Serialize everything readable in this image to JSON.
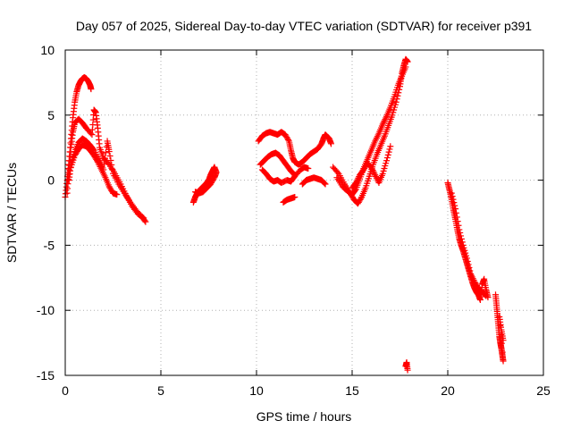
{
  "chart_data": {
    "type": "scatter",
    "title": "Day 057 of 2025, Sidereal Day-to-day VTEC variation (SDTVAR) for receiver p391",
    "xlabel": "GPS time / hours",
    "ylabel": "SDTVAR / TECUs",
    "xlim": [
      0,
      25
    ],
    "ylim": [
      -15,
      10
    ],
    "xticks": [
      0,
      5,
      10,
      15,
      20,
      25
    ],
    "yticks": [
      -15,
      -10,
      -5,
      0,
      5,
      10
    ],
    "grid": true,
    "marker": "+",
    "color": "#ff0000",
    "series": [
      {
        "name": "arc-1",
        "points": [
          [
            0.0,
            -1.3
          ],
          [
            0.1,
            0.0
          ],
          [
            0.2,
            1.5
          ],
          [
            0.3,
            3.2
          ],
          [
            0.4,
            4.8
          ],
          [
            0.5,
            6.0
          ],
          [
            0.6,
            6.8
          ],
          [
            0.7,
            7.3
          ],
          [
            0.8,
            7.6
          ],
          [
            0.9,
            7.8
          ],
          [
            1.0,
            7.9
          ],
          [
            1.1,
            7.8
          ],
          [
            1.2,
            7.6
          ],
          [
            1.3,
            7.3
          ],
          [
            1.35,
            7.0
          ]
        ]
      },
      {
        "name": "arc-2",
        "points": [
          [
            0.1,
            -1.0
          ],
          [
            0.2,
            0.8
          ],
          [
            0.3,
            2.5
          ],
          [
            0.4,
            3.7
          ],
          [
            0.5,
            4.4
          ],
          [
            0.7,
            4.7
          ],
          [
            0.9,
            4.4
          ],
          [
            1.1,
            4.0
          ],
          [
            1.4,
            3.5
          ],
          [
            1.5,
            5.4
          ],
          [
            1.6,
            5.2
          ],
          [
            1.7,
            4.0
          ],
          [
            1.8,
            2.5
          ],
          [
            2.0,
            1.7
          ],
          [
            2.3,
            1.2
          ],
          [
            2.6,
            0.5
          ],
          [
            2.9,
            -0.3
          ],
          [
            3.2,
            -1.2
          ],
          [
            3.5,
            -2.0
          ],
          [
            3.8,
            -2.6
          ],
          [
            4.1,
            -2.9
          ]
        ]
      },
      {
        "name": "arc-3",
        "points": [
          [
            0.2,
            0.0
          ],
          [
            0.3,
            1.2
          ],
          [
            0.5,
            2.2
          ],
          [
            0.7,
            2.9
          ],
          [
            0.9,
            3.2
          ],
          [
            1.1,
            3.0
          ],
          [
            1.3,
            2.7
          ],
          [
            1.5,
            2.3
          ],
          [
            1.8,
            1.5
          ],
          [
            2.0,
            0.8
          ],
          [
            2.2,
            3.0
          ],
          [
            2.3,
            2.2
          ],
          [
            2.5,
            0.5
          ],
          [
            2.8,
            -0.3
          ],
          [
            3.1,
            -1.0
          ],
          [
            3.4,
            -1.7
          ],
          [
            3.7,
            -2.3
          ],
          [
            4.0,
            -2.8
          ],
          [
            4.2,
            -3.2
          ]
        ]
      },
      {
        "name": "arc-4",
        "points": [
          [
            0.3,
            1.0
          ],
          [
            0.5,
            1.9
          ],
          [
            0.7,
            2.4
          ],
          [
            0.9,
            2.7
          ],
          [
            1.1,
            2.6
          ],
          [
            1.3,
            2.3
          ],
          [
            1.5,
            1.9
          ],
          [
            1.7,
            1.4
          ],
          [
            1.9,
            0.8
          ],
          [
            2.1,
            0.2
          ],
          [
            2.3,
            -0.5
          ],
          [
            2.5,
            -1.0
          ],
          [
            2.7,
            -1.1
          ]
        ]
      },
      {
        "name": "arc-5",
        "points": [
          [
            6.7,
            -1.7
          ],
          [
            6.8,
            -1.3
          ],
          [
            6.9,
            -1.0
          ],
          [
            7.0,
            -0.8
          ],
          [
            7.2,
            -0.5
          ],
          [
            7.4,
            -0.2
          ],
          [
            7.5,
            0.0
          ],
          [
            7.6,
            0.4
          ],
          [
            7.7,
            0.7
          ],
          [
            7.8,
            1.0
          ],
          [
            7.9,
            0.6
          ],
          [
            7.8,
            0.2
          ],
          [
            7.6,
            -0.3
          ],
          [
            7.4,
            -0.6
          ],
          [
            7.2,
            -0.9
          ],
          [
            7.0,
            -1.0
          ],
          [
            6.8,
            -0.9
          ]
        ]
      },
      {
        "name": "arc-6",
        "points": [
          [
            10.1,
            3.0
          ],
          [
            10.3,
            3.4
          ],
          [
            10.5,
            3.6
          ],
          [
            10.7,
            3.7
          ],
          [
            10.9,
            3.6
          ],
          [
            11.1,
            3.5
          ],
          [
            11.3,
            3.7
          ],
          [
            11.5,
            3.5
          ],
          [
            11.7,
            3.0
          ],
          [
            11.8,
            2.3
          ],
          [
            11.9,
            1.7
          ],
          [
            12.0,
            1.4
          ],
          [
            12.2,
            1.2
          ],
          [
            12.4,
            1.4
          ],
          [
            12.6,
            1.7
          ],
          [
            12.8,
            2.0
          ],
          [
            13.0,
            2.2
          ],
          [
            13.2,
            2.4
          ],
          [
            13.4,
            2.8
          ],
          [
            13.5,
            3.2
          ],
          [
            13.6,
            3.5
          ],
          [
            13.8,
            3.2
          ],
          [
            13.9,
            2.8
          ]
        ]
      },
      {
        "name": "arc-7",
        "points": [
          [
            10.2,
            1.2
          ],
          [
            10.4,
            1.5
          ],
          [
            10.6,
            1.8
          ],
          [
            10.8,
            2.0
          ],
          [
            11.0,
            2.1
          ],
          [
            11.2,
            1.9
          ],
          [
            11.4,
            1.5
          ],
          [
            11.6,
            1.1
          ],
          [
            11.8,
            0.7
          ],
          [
            12.0,
            0.4
          ]
        ]
      },
      {
        "name": "arc-8",
        "points": [
          [
            10.3,
            0.8
          ],
          [
            10.5,
            0.5
          ],
          [
            10.7,
            0.1
          ],
          [
            10.9,
            -0.1
          ],
          [
            11.1,
            0.0
          ],
          [
            11.3,
            -0.2
          ],
          [
            11.6,
            0.0
          ],
          [
            11.8,
            -0.1
          ],
          [
            12.0,
            0.3
          ],
          [
            12.3,
            0.8
          ],
          [
            12.5,
            1.0
          ],
          [
            12.7,
            0.9
          ]
        ]
      },
      {
        "name": "arc-9",
        "points": [
          [
            12.4,
            -0.3
          ],
          [
            12.6,
            0.0
          ],
          [
            12.8,
            0.1
          ],
          [
            13.0,
            0.2
          ],
          [
            13.2,
            0.1
          ],
          [
            13.4,
            0.0
          ],
          [
            13.6,
            -0.3
          ]
        ]
      },
      {
        "name": "arc-10",
        "points": [
          [
            11.4,
            -1.7
          ],
          [
            11.6,
            -1.5
          ],
          [
            11.8,
            -1.4
          ],
          [
            12.0,
            -1.3
          ]
        ]
      },
      {
        "name": "arc-11",
        "points": [
          [
            14.0,
            1.0
          ],
          [
            14.3,
            0.5
          ],
          [
            14.6,
            -0.3
          ],
          [
            14.9,
            -1.0
          ],
          [
            15.1,
            -1.5
          ],
          [
            15.3,
            -1.8
          ],
          [
            15.5,
            -1.3
          ],
          [
            15.7,
            -0.6
          ],
          [
            15.9,
            0.3
          ],
          [
            16.1,
            1.2
          ],
          [
            16.3,
            2.0
          ],
          [
            16.5,
            2.7
          ],
          [
            16.7,
            3.4
          ],
          [
            16.9,
            4.2
          ],
          [
            17.1,
            5.0
          ],
          [
            17.3,
            6.0
          ],
          [
            17.5,
            7.2
          ],
          [
            17.6,
            8.2
          ],
          [
            17.7,
            8.8
          ],
          [
            17.8,
            9.3
          ],
          [
            17.9,
            9.1
          ]
        ]
      },
      {
        "name": "arc-12",
        "points": [
          [
            14.2,
            0.2
          ],
          [
            14.5,
            -0.5
          ],
          [
            14.8,
            -0.9
          ],
          [
            15.0,
            -1.1
          ],
          [
            15.2,
            -0.7
          ],
          [
            15.4,
            0.1
          ],
          [
            15.6,
            0.9
          ],
          [
            15.8,
            1.6
          ],
          [
            16.0,
            2.3
          ],
          [
            16.2,
            3.0
          ],
          [
            16.4,
            3.6
          ],
          [
            16.6,
            4.3
          ],
          [
            16.8,
            4.9
          ],
          [
            17.0,
            5.6
          ],
          [
            17.2,
            6.4
          ],
          [
            17.4,
            7.3
          ],
          [
            17.6,
            8.0
          ],
          [
            17.8,
            8.7
          ]
        ]
      },
      {
        "name": "arc-13",
        "points": [
          [
            15.0,
            -0.6
          ],
          [
            15.2,
            -0.2
          ],
          [
            15.4,
            0.4
          ],
          [
            15.6,
            0.8
          ],
          [
            15.8,
            1.3
          ],
          [
            16.0,
            1.0
          ],
          [
            16.2,
            0.4
          ],
          [
            16.4,
            -0.2
          ],
          [
            16.6,
            0.5
          ],
          [
            16.8,
            1.5
          ],
          [
            17.0,
            2.6
          ]
        ]
      },
      {
        "name": "arc-14",
        "points": [
          [
            17.8,
            -14.3
          ],
          [
            17.85,
            -14.0
          ],
          [
            17.9,
            -14.6
          ]
        ]
      },
      {
        "name": "arc-15",
        "points": [
          [
            20.0,
            -0.2
          ],
          [
            20.1,
            -0.8
          ],
          [
            20.2,
            -1.5
          ],
          [
            20.3,
            -2.3
          ],
          [
            20.4,
            -3.0
          ],
          [
            20.5,
            -3.8
          ],
          [
            20.6,
            -4.5
          ],
          [
            20.7,
            -5.0
          ],
          [
            20.8,
            -5.4
          ],
          [
            20.9,
            -5.9
          ],
          [
            21.0,
            -6.4
          ],
          [
            21.1,
            -6.9
          ],
          [
            21.2,
            -7.4
          ],
          [
            21.3,
            -7.9
          ],
          [
            21.4,
            -8.3
          ],
          [
            21.5,
            -8.6
          ],
          [
            21.6,
            -8.8
          ],
          [
            21.7,
            -9.2
          ],
          [
            21.8,
            -8.0
          ],
          [
            21.9,
            -7.6
          ],
          [
            22.0,
            -8.4
          ],
          [
            22.1,
            -9.0
          ]
        ]
      },
      {
        "name": "arc-16",
        "points": [
          [
            20.2,
            -1.0
          ],
          [
            20.4,
            -2.2
          ],
          [
            20.6,
            -3.8
          ],
          [
            20.8,
            -5.0
          ],
          [
            21.0,
            -6.0
          ],
          [
            21.2,
            -7.2
          ],
          [
            21.4,
            -7.8
          ],
          [
            21.6,
            -8.3
          ],
          [
            21.8,
            -8.6
          ],
          [
            22.0,
            -8.9
          ]
        ]
      },
      {
        "name": "arc-17",
        "points": [
          [
            22.5,
            -8.8
          ],
          [
            22.55,
            -9.6
          ],
          [
            22.6,
            -10.4
          ],
          [
            22.65,
            -11.2
          ],
          [
            22.7,
            -12.0
          ],
          [
            22.75,
            -12.5
          ],
          [
            22.8,
            -12.9
          ],
          [
            22.85,
            -13.4
          ],
          [
            22.9,
            -13.9
          ],
          [
            22.7,
            -10.5
          ],
          [
            22.8,
            -11.5
          ],
          [
            22.9,
            -12.3
          ]
        ]
      }
    ]
  }
}
